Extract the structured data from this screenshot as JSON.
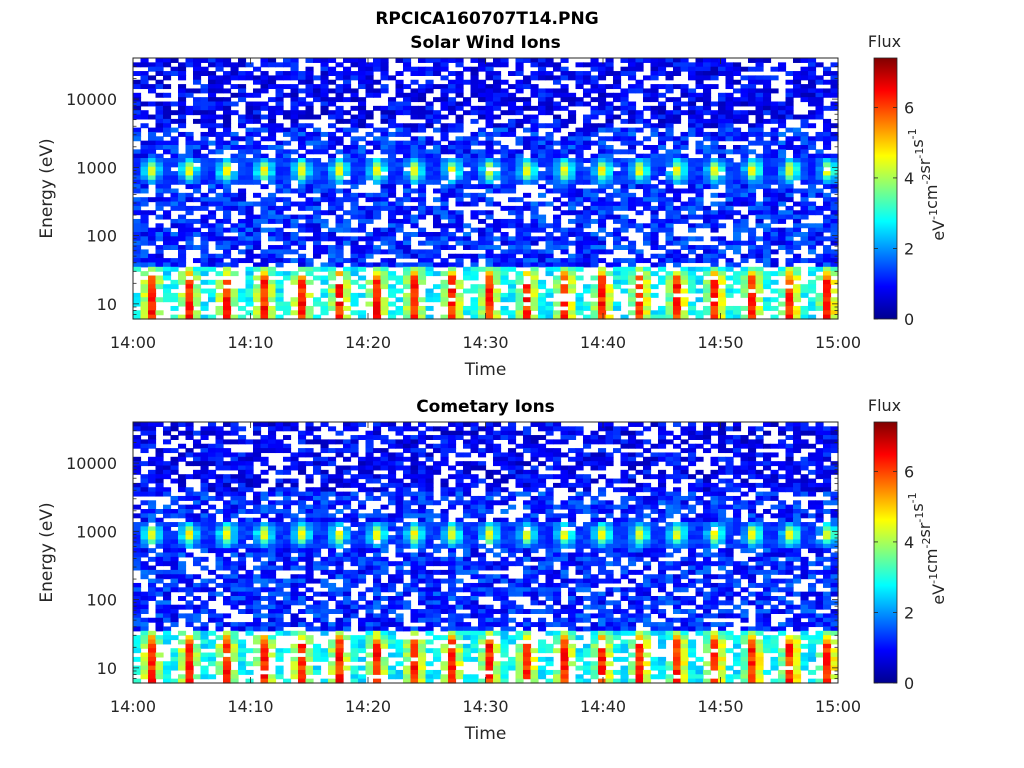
{
  "figure": {
    "title": "RPCICA160707T14.PNG"
  },
  "colormap": [
    "#00008f",
    "#0000ff",
    "#0080ff",
    "#00ffff",
    "#80ff80",
    "#ffff00",
    "#ff8000",
    "#ff0000",
    "#800000"
  ],
  "chart_data": [
    {
      "type": "heatmap",
      "title": "Solar Wind Ions",
      "xlabel": "Time",
      "ylabel": "Energy (eV)",
      "x_range": [
        "14:00",
        "15:00"
      ],
      "x_ticks": [
        "14:00",
        "14:10",
        "14:20",
        "14:30",
        "14:40",
        "14:50",
        "15:00"
      ],
      "y_scale": "log",
      "y_range": [
        6,
        40000
      ],
      "y_ticks": [
        "10",
        "100",
        "1000",
        "10000"
      ],
      "colorbar": {
        "title": "Flux",
        "label": "eV-1cm-2sr-1s-1",
        "range": [
          0,
          7.4
        ],
        "ticks": [
          "0",
          "2",
          "4",
          "6"
        ]
      },
      "features": {
        "cadence_minutes": 3.2,
        "bands": [
          {
            "energy_center_eV": 900,
            "peak_flux": 4.3
          },
          {
            "energy_center_eV": 20,
            "peak_flux": 6.0
          }
        ]
      }
    },
    {
      "type": "heatmap",
      "title": "Cometary Ions",
      "xlabel": "Time",
      "ylabel": "Energy (eV)",
      "x_range": [
        "14:00",
        "15:00"
      ],
      "x_ticks": [
        "14:00",
        "14:10",
        "14:20",
        "14:30",
        "14:40",
        "14:50",
        "15:00"
      ],
      "y_scale": "log",
      "y_range": [
        6,
        40000
      ],
      "y_ticks": [
        "10",
        "100",
        "1000",
        "10000"
      ],
      "colorbar": {
        "title": "Flux",
        "label": "eV-1cm-2sr-1s-1",
        "range": [
          0,
          7.4
        ],
        "ticks": [
          "0",
          "2",
          "4",
          "6"
        ]
      },
      "features": {
        "cadence_minutes": 3.2,
        "bands": [
          {
            "energy_center_eV": 900,
            "peak_flux": 4.3
          },
          {
            "energy_center_eV": 20,
            "peak_flux": 6.0
          }
        ]
      }
    }
  ]
}
